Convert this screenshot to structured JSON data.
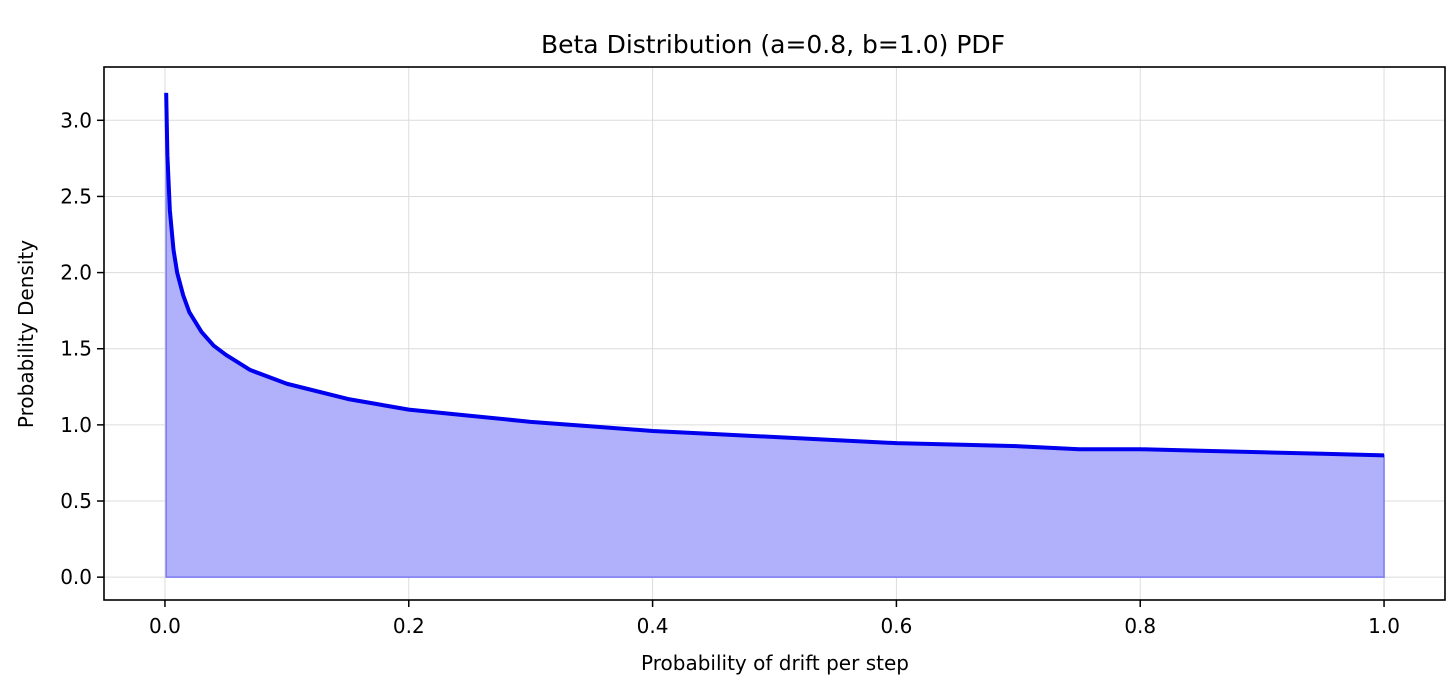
{
  "chart_data": {
    "type": "area",
    "title": "Beta Distribution (a=0.8, b=1.0) PDF",
    "xlabel": "Probability of drift per step",
    "ylabel": "Probability Density",
    "xlim": [
      -0.05,
      1.05
    ],
    "ylim": [
      -0.15,
      3.35
    ],
    "xticks": [
      0.0,
      0.2,
      0.4,
      0.6,
      0.8,
      1.0
    ],
    "xtick_labels": [
      "0.0",
      "0.2",
      "0.4",
      "0.6",
      "0.8",
      "1.0"
    ],
    "yticks": [
      0.0,
      0.5,
      1.0,
      1.5,
      2.0,
      2.5,
      3.0
    ],
    "ytick_labels": [
      "0.0",
      "0.5",
      "1.0",
      "1.5",
      "2.0",
      "2.5",
      "3.0"
    ],
    "grid": true,
    "legend": "none",
    "series": [
      {
        "x": [
          0.001,
          0.002,
          0.004,
          0.007,
          0.01,
          0.015,
          0.02,
          0.03,
          0.04,
          0.05,
          0.07,
          0.1,
          0.15,
          0.2,
          0.25,
          0.3,
          0.35,
          0.4,
          0.45,
          0.5,
          0.55,
          0.6,
          0.65,
          0.7,
          0.75,
          0.8,
          0.85,
          0.9,
          0.95,
          1.0
        ],
        "y": [
          3.18,
          2.77,
          2.41,
          2.15,
          2.0,
          1.85,
          1.74,
          1.61,
          1.52,
          1.46,
          1.36,
          1.27,
          1.17,
          1.1,
          1.06,
          1.02,
          0.99,
          0.96,
          0.94,
          0.92,
          0.9,
          0.88,
          0.87,
          0.86,
          0.84,
          0.84,
          0.83,
          0.82,
          0.81,
          0.8
        ]
      }
    ],
    "colors": {
      "line": "#0000ee",
      "fill": "#b0b0fb",
      "fill_edge": "#7a7aee",
      "grid": "#dcdcdc",
      "axes": "#000000"
    }
  }
}
